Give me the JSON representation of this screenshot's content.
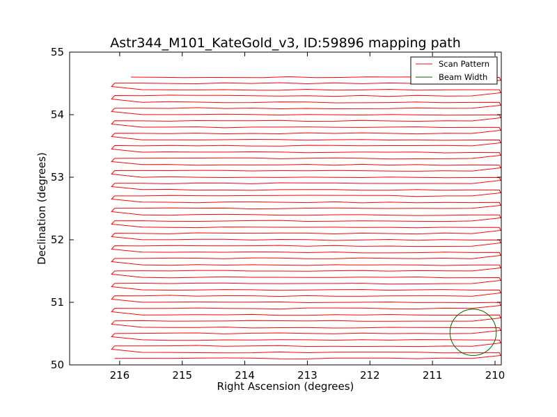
{
  "chart_data": {
    "type": "line",
    "title": "Astr344_M101_KateGold_v3, ID:59896 mapping path",
    "xlabel": "Right Ascension (degrees)",
    "ylabel": "Declination (degrees)",
    "xlim": [
      216.8,
      209.9
    ],
    "ylim": [
      50,
      55
    ],
    "xticks": [
      216,
      215,
      214,
      213,
      212,
      211,
      210
    ],
    "yticks": [
      50,
      51,
      52,
      53,
      54,
      55
    ],
    "grid": false,
    "legend_position": "top-right",
    "series": [
      {
        "name": "Scan Pattern",
        "color": "#ff0000",
        "kind": "raster-scan",
        "ra_start": 215.82,
        "dec_start": 54.6,
        "ra_west_turn": 216.08,
        "ra_east_turn": 209.93,
        "first_leg_dec": 54.6,
        "last_leg_dec": 50.1,
        "leg_spacing_deg": 0.1,
        "n_legs": 46
      },
      {
        "name": "Beam Width",
        "color": "#006400",
        "kind": "circle",
        "center_ra": 210.35,
        "center_dec": 50.52,
        "radius_deg": 0.37
      }
    ],
    "legend": [
      {
        "label": "Scan Pattern",
        "color": "#ff0000"
      },
      {
        "label": "Beam Width",
        "color": "#006400"
      }
    ]
  }
}
